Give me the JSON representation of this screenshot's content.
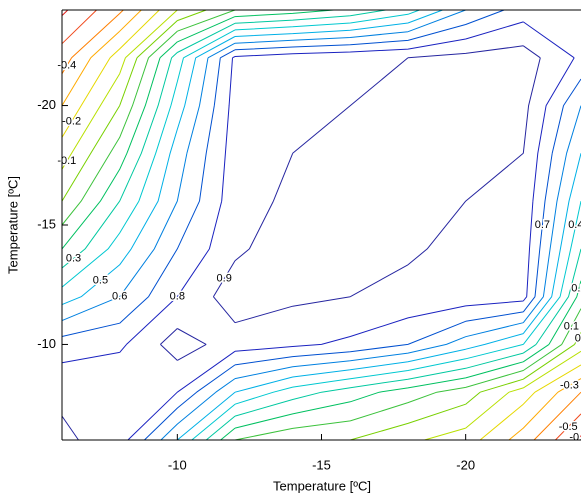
{
  "chart_data": {
    "type": "contour",
    "x_label": "Temperature [ºC]",
    "y_label": "Temperature [ºC]",
    "xlim": [
      -6,
      -24
    ],
    "ylim": [
      -6,
      -24
    ],
    "xticks": [
      -10,
      -15,
      -20
    ],
    "yticks": [
      -20,
      -15,
      -10
    ],
    "x": [
      -6,
      -8,
      -10,
      -12,
      -14,
      -16,
      -18,
      -20,
      -22,
      -24
    ],
    "y": [
      -24,
      -22,
      -20,
      -18,
      -16,
      -14,
      -12,
      -10,
      -8,
      -6
    ],
    "z": [
      [
        -0.62,
        -0.42,
        -0.1,
        0.1,
        0.15,
        0.22,
        0.35,
        0.6,
        0.75,
        0.72
      ],
      [
        -0.45,
        -0.15,
        0.35,
        0.82,
        0.86,
        0.88,
        0.9,
        0.93,
        0.95,
        0.78
      ],
      [
        -0.3,
        0.0,
        0.45,
        0.84,
        0.88,
        0.9,
        0.92,
        0.96,
        0.93,
        0.6
      ],
      [
        -0.15,
        0.15,
        0.55,
        0.85,
        0.9,
        0.92,
        0.96,
        0.93,
        0.9,
        0.5
      ],
      [
        0.0,
        0.3,
        0.6,
        0.86,
        0.92,
        0.96,
        0.93,
        0.9,
        0.88,
        0.4
      ],
      [
        0.2,
        0.45,
        0.7,
        0.88,
        0.96,
        0.93,
        0.91,
        0.88,
        0.86,
        0.3
      ],
      [
        0.45,
        0.6,
        0.8,
        0.96,
        0.92,
        0.9,
        0.88,
        0.86,
        0.84,
        0.15
      ],
      [
        0.75,
        0.78,
        0.95,
        0.85,
        0.82,
        0.78,
        0.7,
        0.55,
        0.4,
        -0.05
      ],
      [
        0.88,
        0.9,
        0.8,
        0.5,
        0.35,
        0.25,
        0.15,
        0.05,
        -0.15,
        -0.4
      ],
      [
        0.92,
        0.85,
        0.5,
        0.1,
        0.02,
        0.0,
        -0.08,
        -0.15,
        -0.35,
        -0.62
      ]
    ],
    "levels": [
      -0.6,
      -0.5,
      -0.4,
      -0.3,
      -0.2,
      -0.1,
      0,
      0.1,
      0.2,
      0.3,
      0.4,
      0.5,
      0.6,
      0.7,
      0.8,
      0.9
    ],
    "level_colors": [
      "#e0201c",
      "#f04a1e",
      "#ff7f00",
      "#ffaa00",
      "#e6d800",
      "#b8e000",
      "#78d000",
      "#3cc23c",
      "#00c060",
      "#00c8a0",
      "#00c8d0",
      "#00b0e6",
      "#0080e0",
      "#0050d0",
      "#1a22c0",
      "#2626a0"
    ]
  }
}
